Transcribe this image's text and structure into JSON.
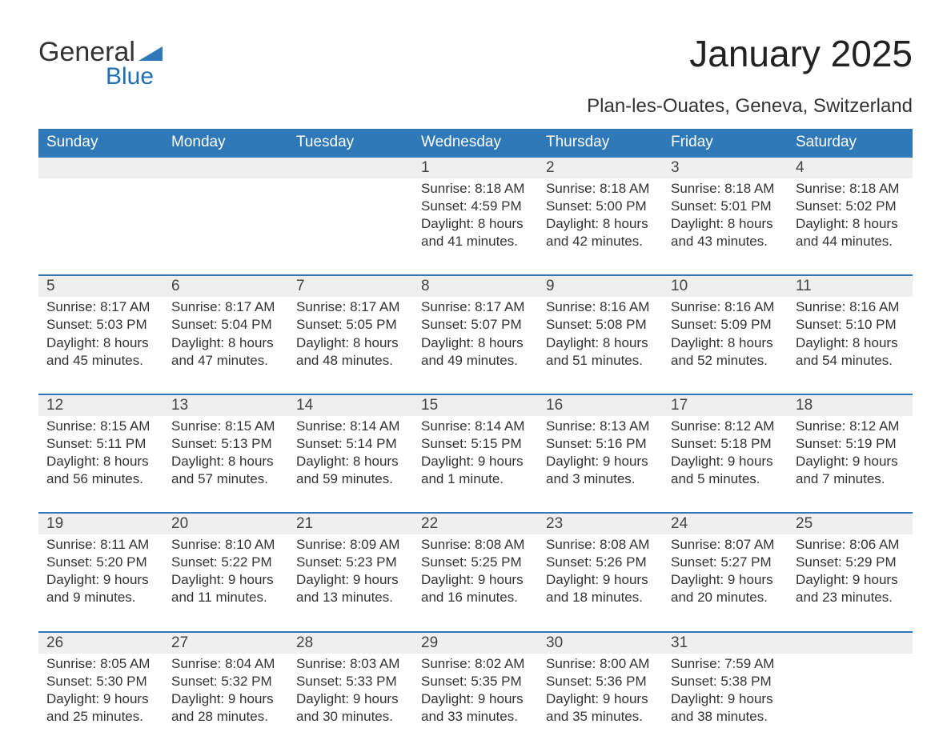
{
  "brand": {
    "line1": "General",
    "line2": "Blue",
    "logo_color": "#2f79b9"
  },
  "title": "January 2025",
  "subtitle": "Plan-les-Ouates, Geneva, Switzerland",
  "colors": {
    "header_bg": "#2f79b9",
    "header_text": "#ffffff",
    "daynum_bg": "#efefef",
    "row_border": "#2f79b9",
    "body_text": "#333333",
    "page_bg": "#ffffff"
  },
  "fonts": {
    "title_size": 46,
    "subtitle_size": 24,
    "header_size": 19,
    "cell_size": 17
  },
  "weekdays": [
    "Sunday",
    "Monday",
    "Tuesday",
    "Wednesday",
    "Thursday",
    "Friday",
    "Saturday"
  ],
  "labels": {
    "sunrise": "Sunrise:",
    "sunset": "Sunset:",
    "daylight": "Daylight:"
  },
  "weeks": [
    [
      null,
      null,
      null,
      {
        "d": "1",
        "sr": "8:18 AM",
        "ss": "4:59 PM",
        "dl": "8 hours and 41 minutes."
      },
      {
        "d": "2",
        "sr": "8:18 AM",
        "ss": "5:00 PM",
        "dl": "8 hours and 42 minutes."
      },
      {
        "d": "3",
        "sr": "8:18 AM",
        "ss": "5:01 PM",
        "dl": "8 hours and 43 minutes."
      },
      {
        "d": "4",
        "sr": "8:18 AM",
        "ss": "5:02 PM",
        "dl": "8 hours and 44 minutes."
      }
    ],
    [
      {
        "d": "5",
        "sr": "8:17 AM",
        "ss": "5:03 PM",
        "dl": "8 hours and 45 minutes."
      },
      {
        "d": "6",
        "sr": "8:17 AM",
        "ss": "5:04 PM",
        "dl": "8 hours and 47 minutes."
      },
      {
        "d": "7",
        "sr": "8:17 AM",
        "ss": "5:05 PM",
        "dl": "8 hours and 48 minutes."
      },
      {
        "d": "8",
        "sr": "8:17 AM",
        "ss": "5:07 PM",
        "dl": "8 hours and 49 minutes."
      },
      {
        "d": "9",
        "sr": "8:16 AM",
        "ss": "5:08 PM",
        "dl": "8 hours and 51 minutes."
      },
      {
        "d": "10",
        "sr": "8:16 AM",
        "ss": "5:09 PM",
        "dl": "8 hours and 52 minutes."
      },
      {
        "d": "11",
        "sr": "8:16 AM",
        "ss": "5:10 PM",
        "dl": "8 hours and 54 minutes."
      }
    ],
    [
      {
        "d": "12",
        "sr": "8:15 AM",
        "ss": "5:11 PM",
        "dl": "8 hours and 56 minutes."
      },
      {
        "d": "13",
        "sr": "8:15 AM",
        "ss": "5:13 PM",
        "dl": "8 hours and 57 minutes."
      },
      {
        "d": "14",
        "sr": "8:14 AM",
        "ss": "5:14 PM",
        "dl": "8 hours and 59 minutes."
      },
      {
        "d": "15",
        "sr": "8:14 AM",
        "ss": "5:15 PM",
        "dl": "9 hours and 1 minute."
      },
      {
        "d": "16",
        "sr": "8:13 AM",
        "ss": "5:16 PM",
        "dl": "9 hours and 3 minutes."
      },
      {
        "d": "17",
        "sr": "8:12 AM",
        "ss": "5:18 PM",
        "dl": "9 hours and 5 minutes."
      },
      {
        "d": "18",
        "sr": "8:12 AM",
        "ss": "5:19 PM",
        "dl": "9 hours and 7 minutes."
      }
    ],
    [
      {
        "d": "19",
        "sr": "8:11 AM",
        "ss": "5:20 PM",
        "dl": "9 hours and 9 minutes."
      },
      {
        "d": "20",
        "sr": "8:10 AM",
        "ss": "5:22 PM",
        "dl": "9 hours and 11 minutes."
      },
      {
        "d": "21",
        "sr": "8:09 AM",
        "ss": "5:23 PM",
        "dl": "9 hours and 13 minutes."
      },
      {
        "d": "22",
        "sr": "8:08 AM",
        "ss": "5:25 PM",
        "dl": "9 hours and 16 minutes."
      },
      {
        "d": "23",
        "sr": "8:08 AM",
        "ss": "5:26 PM",
        "dl": "9 hours and 18 minutes."
      },
      {
        "d": "24",
        "sr": "8:07 AM",
        "ss": "5:27 PM",
        "dl": "9 hours and 20 minutes."
      },
      {
        "d": "25",
        "sr": "8:06 AM",
        "ss": "5:29 PM",
        "dl": "9 hours and 23 minutes."
      }
    ],
    [
      {
        "d": "26",
        "sr": "8:05 AM",
        "ss": "5:30 PM",
        "dl": "9 hours and 25 minutes."
      },
      {
        "d": "27",
        "sr": "8:04 AM",
        "ss": "5:32 PM",
        "dl": "9 hours and 28 minutes."
      },
      {
        "d": "28",
        "sr": "8:03 AM",
        "ss": "5:33 PM",
        "dl": "9 hours and 30 minutes."
      },
      {
        "d": "29",
        "sr": "8:02 AM",
        "ss": "5:35 PM",
        "dl": "9 hours and 33 minutes."
      },
      {
        "d": "30",
        "sr": "8:00 AM",
        "ss": "5:36 PM",
        "dl": "9 hours and 35 minutes."
      },
      {
        "d": "31",
        "sr": "7:59 AM",
        "ss": "5:38 PM",
        "dl": "9 hours and 38 minutes."
      },
      null
    ]
  ]
}
